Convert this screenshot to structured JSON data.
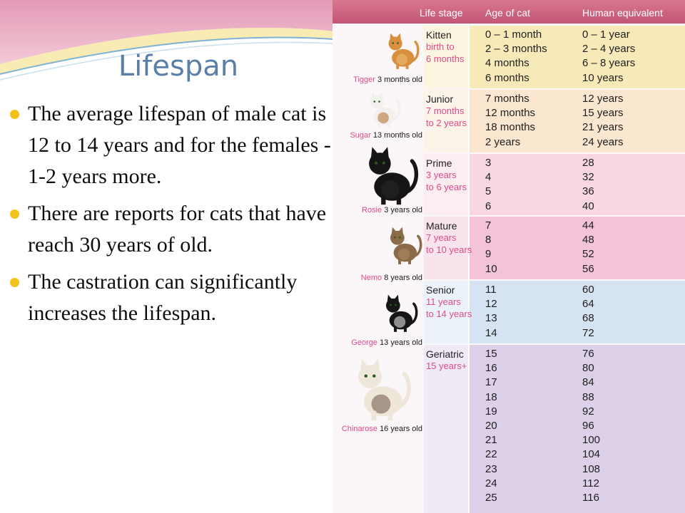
{
  "slide": {
    "title": "Lifespan",
    "bullets": [
      "The average lifespan of male cat is 12 to 14 years and for the females  - 1-2 years more.",
      "There are reports for cats that have reach 30 years of old.",
      "The castration can significantly increases the lifespan."
    ]
  },
  "table": {
    "headers": {
      "stage": "Life stage",
      "age": "Age of cat",
      "human": "Human equivalent"
    },
    "stages": [
      {
        "name": "Kitten",
        "range": "birth to\n6 months",
        "cat_name": "Tigger",
        "cat_age": "3 months old",
        "ages": [
          "0 – 1 month",
          "2 – 3 months",
          "4 months",
          "6 months"
        ],
        "human": [
          "0 – 1 year",
          "2 – 4 years",
          "6 – 8 years",
          "10 years"
        ]
      },
      {
        "name": "Junior",
        "range": "7 months\nto 2 years",
        "cat_name": "Sugar",
        "cat_age": "13 months old",
        "ages": [
          "7 months",
          "12 months",
          "18 months",
          "2 years"
        ],
        "human": [
          "12 years",
          "15 years",
          "21 years",
          "24 years"
        ]
      },
      {
        "name": "Prime",
        "range": "3 years\nto 6 years",
        "cat_name": "Rosie",
        "cat_age": "3 years old",
        "ages": [
          "3",
          "4",
          "5",
          "6"
        ],
        "human": [
          "28",
          "32",
          "36",
          "40"
        ]
      },
      {
        "name": "Mature",
        "range": "7 years\nto 10 years",
        "cat_name": "Nemo",
        "cat_age": "8 years old",
        "ages": [
          "7",
          "8",
          "9",
          "10"
        ],
        "human": [
          "44",
          "48",
          "52",
          "56"
        ]
      },
      {
        "name": "Senior",
        "range": "11 years\nto 14 years",
        "cat_name": "George",
        "cat_age": "13 years old",
        "ages": [
          "11",
          "12",
          "13",
          "14"
        ],
        "human": [
          "60",
          "64",
          "68",
          "72"
        ]
      },
      {
        "name": "Geriatric",
        "range": "15 years+",
        "cat_name": "Chinarose",
        "cat_age": "16 years old",
        "ages": [
          "15",
          "16",
          "17",
          "18",
          "19",
          "20",
          "21",
          "22",
          "23",
          "24",
          "25"
        ],
        "human": [
          "76",
          "80",
          "84",
          "88",
          "92",
          "96",
          "100",
          "104",
          "108",
          "112",
          "116"
        ]
      }
    ]
  },
  "colors": {
    "header": "#c9607c",
    "bullet": "#f4c01a",
    "title": "#5a7fa8",
    "range_text": "#e04a8c",
    "bands": [
      "#f8e9b8",
      "#fbe7cf",
      "#f8d7e0",
      "#f2c3d9",
      "#d6e3f3",
      "#ddd1ea"
    ]
  }
}
